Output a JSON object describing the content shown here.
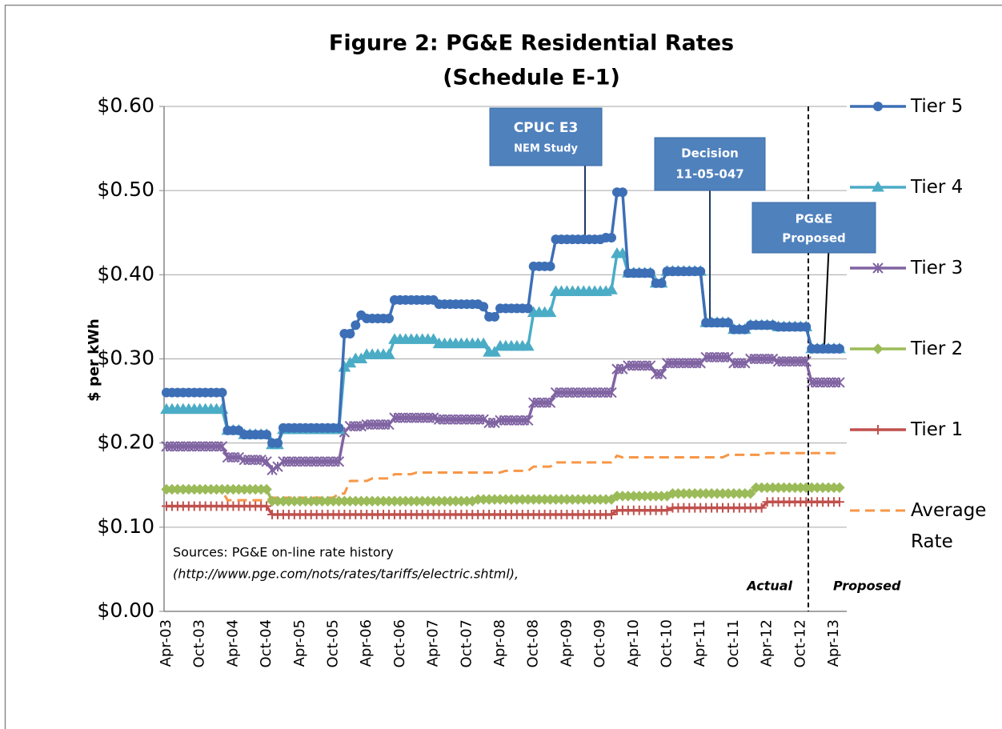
{
  "chart_data": {
    "type": "line",
    "title": "Figure 2: PG&E Residential Rates",
    "subtitle": "(Schedule E-1)",
    "y_label": "$ per kWh",
    "ylim": [
      0,
      0.6
    ],
    "yticks": [
      {
        "value": 0,
        "label": "$0.00"
      },
      {
        "value": 0.1,
        "label": "$0.10"
      },
      {
        "value": 0.2,
        "label": "$0.20"
      },
      {
        "value": 0.3,
        "label": "$0.30"
      },
      {
        "value": 0.4,
        "label": "$0.40"
      },
      {
        "value": 0.5,
        "label": "$0.50"
      },
      {
        "value": 0.6,
        "label": "$0.60"
      }
    ],
    "grid": true,
    "legend": "right",
    "categories": [
      "Apr-03",
      null,
      null,
      null,
      null,
      null,
      "Oct-03",
      null,
      null,
      null,
      null,
      null,
      "Apr-04",
      null,
      null,
      null,
      null,
      null,
      "Oct-04",
      null,
      null,
      null,
      null,
      null,
      "Apr-05",
      null,
      null,
      null,
      null,
      null,
      "Oct-05",
      null,
      null,
      null,
      null,
      null,
      "Apr-06",
      null,
      null,
      null,
      null,
      null,
      "Oct-06",
      null,
      null,
      null,
      null,
      null,
      "Apr-07",
      null,
      null,
      null,
      null,
      null,
      "Oct-07",
      null,
      null,
      null,
      null,
      null,
      "Apr-08",
      null,
      null,
      null,
      null,
      null,
      "Oct-08",
      null,
      null,
      null,
      null,
      null,
      "Apr-09",
      null,
      null,
      null,
      null,
      null,
      "Oct-09",
      null,
      null,
      null,
      null,
      null,
      "Apr-10",
      null,
      null,
      null,
      null,
      null,
      "Oct-10",
      null,
      null,
      null,
      null,
      null,
      "Apr-11",
      null,
      null,
      null,
      null,
      null,
      "Oct-11",
      null,
      null,
      null,
      null,
      null,
      "Apr-12",
      null,
      null,
      null,
      null,
      null,
      "Oct-12",
      null,
      null,
      null,
      null,
      null,
      "Apr-13",
      null
    ],
    "series": [
      {
        "name": "Tier 5",
        "color": "#3d6fb6",
        "marker": "circle",
        "values": [
          0.26,
          0.26,
          0.26,
          0.26,
          0.26,
          0.26,
          0.26,
          0.26,
          0.26,
          0.26,
          0.26,
          0.215,
          0.215,
          0.215,
          0.21,
          0.21,
          0.21,
          0.21,
          0.21,
          0.2,
          0.2,
          0.218,
          0.218,
          0.218,
          0.218,
          0.218,
          0.218,
          0.218,
          0.218,
          0.218,
          0.218,
          0.218,
          0.33,
          0.33,
          0.34,
          0.352,
          0.348,
          0.348,
          0.348,
          0.348,
          0.348,
          0.37,
          0.37,
          0.37,
          0.37,
          0.37,
          0.37,
          0.37,
          0.37,
          0.365,
          0.365,
          0.365,
          0.365,
          0.365,
          0.365,
          0.365,
          0.365,
          0.362,
          0.35,
          0.35,
          0.36,
          0.36,
          0.36,
          0.36,
          0.36,
          0.36,
          0.41,
          0.41,
          0.41,
          0.41,
          0.442,
          0.442,
          0.442,
          0.442,
          0.442,
          0.442,
          0.442,
          0.442,
          0.442,
          0.444,
          0.444,
          0.498,
          0.498,
          0.402,
          0.402,
          0.402,
          0.402,
          0.402,
          0.39,
          0.39,
          0.404,
          0.404,
          0.404,
          0.404,
          0.404,
          0.404,
          0.404,
          0.343,
          0.343,
          0.343,
          0.343,
          0.343,
          0.335,
          0.335,
          0.335,
          0.34,
          0.34,
          0.34,
          0.34,
          0.34,
          0.338,
          0.338,
          0.338,
          0.338,
          0.338,
          0.338,
          0.312,
          0.312,
          0.312,
          0.312,
          0.312,
          0.312
        ]
      },
      {
        "name": "Tier 4",
        "color": "#4bacc6",
        "marker": "triangle",
        "values": [
          0.24,
          0.24,
          0.24,
          0.24,
          0.24,
          0.24,
          0.24,
          0.24,
          0.24,
          0.24,
          0.24,
          0.215,
          0.215,
          0.215,
          0.21,
          0.21,
          0.21,
          0.21,
          0.21,
          0.198,
          0.198,
          0.216,
          0.216,
          0.216,
          0.216,
          0.216,
          0.216,
          0.216,
          0.216,
          0.216,
          0.216,
          0.216,
          0.29,
          0.295,
          0.3,
          0.3,
          0.305,
          0.305,
          0.305,
          0.305,
          0.305,
          0.323,
          0.323,
          0.323,
          0.323,
          0.323,
          0.323,
          0.323,
          0.323,
          0.318,
          0.318,
          0.318,
          0.318,
          0.318,
          0.318,
          0.318,
          0.318,
          0.318,
          0.308,
          0.308,
          0.315,
          0.315,
          0.315,
          0.315,
          0.315,
          0.315,
          0.355,
          0.355,
          0.355,
          0.355,
          0.38,
          0.38,
          0.38,
          0.38,
          0.38,
          0.38,
          0.38,
          0.38,
          0.38,
          0.38,
          0.382,
          0.425,
          0.425,
          0.402,
          0.402,
          0.402,
          0.402,
          0.402,
          0.39,
          0.39,
          0.404,
          0.404,
          0.404,
          0.404,
          0.404,
          0.404,
          0.404,
          0.343,
          0.343,
          0.343,
          0.343,
          0.343,
          0.335,
          0.335,
          0.335,
          0.34,
          0.34,
          0.34,
          0.34,
          0.34,
          0.338,
          0.338,
          0.338,
          0.338,
          0.338,
          0.338,
          0.312,
          0.312,
          0.312,
          0.312,
          0.312,
          0.312
        ]
      },
      {
        "name": "Tier 3",
        "color": "#8064a2",
        "marker": "asterisk",
        "values": [
          0.196,
          0.196,
          0.196,
          0.196,
          0.196,
          0.196,
          0.196,
          0.196,
          0.196,
          0.196,
          0.196,
          0.183,
          0.183,
          0.183,
          0.18,
          0.18,
          0.18,
          0.18,
          0.178,
          0.168,
          0.172,
          0.178,
          0.178,
          0.178,
          0.178,
          0.178,
          0.178,
          0.178,
          0.178,
          0.178,
          0.178,
          0.178,
          0.213,
          0.22,
          0.22,
          0.22,
          0.222,
          0.222,
          0.222,
          0.222,
          0.222,
          0.23,
          0.23,
          0.23,
          0.23,
          0.23,
          0.23,
          0.23,
          0.23,
          0.228,
          0.228,
          0.228,
          0.228,
          0.228,
          0.228,
          0.228,
          0.228,
          0.228,
          0.224,
          0.224,
          0.227,
          0.227,
          0.227,
          0.227,
          0.227,
          0.227,
          0.248,
          0.248,
          0.248,
          0.248,
          0.26,
          0.26,
          0.26,
          0.26,
          0.26,
          0.26,
          0.26,
          0.26,
          0.26,
          0.26,
          0.26,
          0.288,
          0.288,
          0.292,
          0.292,
          0.292,
          0.292,
          0.292,
          0.282,
          0.282,
          0.295,
          0.295,
          0.295,
          0.295,
          0.295,
          0.295,
          0.295,
          0.302,
          0.302,
          0.302,
          0.302,
          0.302,
          0.295,
          0.295,
          0.295,
          0.3,
          0.3,
          0.3,
          0.3,
          0.3,
          0.297,
          0.297,
          0.297,
          0.297,
          0.297,
          0.297,
          0.272,
          0.272,
          0.272,
          0.272,
          0.272,
          0.272
        ]
      },
      {
        "name": "Tier 2",
        "color": "#9bbb59",
        "marker": "diamond",
        "values": [
          0.145,
          0.145,
          0.145,
          0.145,
          0.145,
          0.145,
          0.145,
          0.145,
          0.145,
          0.145,
          0.145,
          0.145,
          0.145,
          0.145,
          0.145,
          0.145,
          0.145,
          0.145,
          0.145,
          0.131,
          0.131,
          0.131,
          0.131,
          0.131,
          0.131,
          0.131,
          0.131,
          0.131,
          0.131,
          0.131,
          0.131,
          0.131,
          0.131,
          0.131,
          0.131,
          0.131,
          0.131,
          0.131,
          0.131,
          0.131,
          0.131,
          0.131,
          0.131,
          0.131,
          0.131,
          0.131,
          0.131,
          0.131,
          0.131,
          0.131,
          0.131,
          0.131,
          0.131,
          0.131,
          0.131,
          0.131,
          0.133,
          0.133,
          0.133,
          0.133,
          0.133,
          0.133,
          0.133,
          0.133,
          0.133,
          0.133,
          0.133,
          0.133,
          0.133,
          0.133,
          0.133,
          0.133,
          0.133,
          0.133,
          0.133,
          0.133,
          0.133,
          0.133,
          0.133,
          0.133,
          0.133,
          0.137,
          0.137,
          0.137,
          0.137,
          0.137,
          0.137,
          0.137,
          0.137,
          0.137,
          0.137,
          0.14,
          0.14,
          0.14,
          0.14,
          0.14,
          0.14,
          0.14,
          0.14,
          0.14,
          0.14,
          0.14,
          0.14,
          0.14,
          0.14,
          0.14,
          0.147,
          0.147,
          0.147,
          0.147,
          0.147,
          0.147,
          0.147,
          0.147,
          0.147,
          0.147,
          0.147,
          0.147,
          0.147,
          0.147,
          0.147,
          0.147
        ]
      },
      {
        "name": "Tier 1",
        "color": "#c0504d",
        "marker": "plus",
        "values": [
          0.125,
          0.125,
          0.125,
          0.125,
          0.125,
          0.125,
          0.125,
          0.125,
          0.125,
          0.125,
          0.125,
          0.125,
          0.125,
          0.125,
          0.125,
          0.125,
          0.125,
          0.125,
          0.125,
          0.115,
          0.115,
          0.115,
          0.115,
          0.115,
          0.115,
          0.115,
          0.115,
          0.115,
          0.115,
          0.115,
          0.115,
          0.115,
          0.115,
          0.115,
          0.115,
          0.115,
          0.115,
          0.115,
          0.115,
          0.115,
          0.115,
          0.115,
          0.115,
          0.115,
          0.115,
          0.115,
          0.115,
          0.115,
          0.115,
          0.115,
          0.115,
          0.115,
          0.115,
          0.115,
          0.115,
          0.115,
          0.115,
          0.115,
          0.115,
          0.115,
          0.115,
          0.115,
          0.115,
          0.115,
          0.115,
          0.115,
          0.115,
          0.115,
          0.115,
          0.115,
          0.115,
          0.115,
          0.115,
          0.115,
          0.115,
          0.115,
          0.115,
          0.115,
          0.115,
          0.115,
          0.115,
          0.12,
          0.12,
          0.12,
          0.12,
          0.12,
          0.12,
          0.12,
          0.12,
          0.12,
          0.12,
          0.123,
          0.123,
          0.123,
          0.123,
          0.123,
          0.123,
          0.123,
          0.123,
          0.123,
          0.123,
          0.123,
          0.123,
          0.123,
          0.123,
          0.123,
          0.123,
          0.123,
          0.13,
          0.13,
          0.13,
          0.13,
          0.13,
          0.13,
          0.13,
          0.13,
          0.13,
          0.13,
          0.13,
          0.13,
          0.13,
          0.13
        ]
      },
      {
        "name": "Average Rate",
        "color": "#f79646",
        "marker": "none",
        "dashed": true,
        "values": [
          0.143,
          0.143,
          0.143,
          0.143,
          0.143,
          0.143,
          0.143,
          0.143,
          0.143,
          0.143,
          0.143,
          0.132,
          0.132,
          0.132,
          0.132,
          0.132,
          0.132,
          0.132,
          0.132,
          0.135,
          0.135,
          0.135,
          0.135,
          0.135,
          0.135,
          0.135,
          0.135,
          0.135,
          0.135,
          0.135,
          0.135,
          0.14,
          0.14,
          0.155,
          0.155,
          0.155,
          0.155,
          0.158,
          0.158,
          0.158,
          0.158,
          0.163,
          0.163,
          0.163,
          0.163,
          0.165,
          0.165,
          0.165,
          0.165,
          0.165,
          0.165,
          0.165,
          0.165,
          0.165,
          0.165,
          0.165,
          0.165,
          0.165,
          0.165,
          0.165,
          0.165,
          0.167,
          0.167,
          0.167,
          0.167,
          0.167,
          0.172,
          0.172,
          0.172,
          0.172,
          0.177,
          0.177,
          0.177,
          0.177,
          0.177,
          0.177,
          0.177,
          0.177,
          0.177,
          0.177,
          0.177,
          0.185,
          0.183,
          0.183,
          0.183,
          0.183,
          0.183,
          0.183,
          0.183,
          0.183,
          0.183,
          0.183,
          0.183,
          0.183,
          0.183,
          0.183,
          0.183,
          0.183,
          0.183,
          0.183,
          0.183,
          0.186,
          0.186,
          0.186,
          0.186,
          0.186,
          0.186,
          0.186,
          0.188,
          0.188,
          0.188,
          0.188,
          0.188,
          0.188,
          0.188,
          0.188,
          0.188,
          0.188,
          0.188,
          0.188,
          0.188,
          0.188
        ]
      }
    ],
    "annotations": [
      {
        "lines": [
          "CPUC E3",
          "NEM Study"
        ]
      },
      {
        "lines": [
          "Decision",
          "11-05-047"
        ]
      },
      {
        "lines": [
          "PG&E",
          "Proposed"
        ]
      }
    ],
    "source_note": [
      "Sources:  PG&E on-line rate history",
      "(http://www.pge.com/nots/rates/tariffs/electric.shtml),"
    ],
    "period_labels": [
      "Actual",
      "Proposed"
    ]
  }
}
